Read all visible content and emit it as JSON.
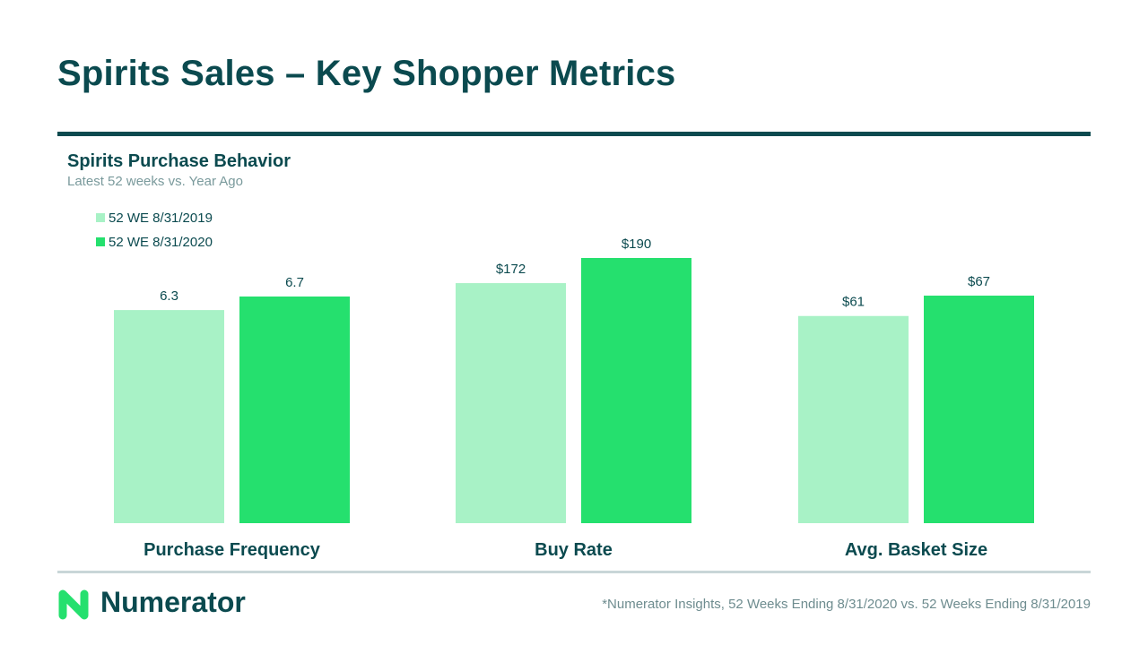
{
  "header": {
    "title": "Spirits Sales – Key Shopper Metrics"
  },
  "chart_data": {
    "type": "bar",
    "title": "Spirits Purchase Behavior",
    "subtitle": "Latest 52 weeks vs. Year Ago",
    "categories": [
      "Purchase Frequency",
      "Buy Rate",
      "Avg. Basket Size"
    ],
    "series": [
      {
        "name": "52 WE 8/31/2019",
        "color": "#a8f2c6",
        "values": [
          6.3,
          172,
          61
        ],
        "labels": [
          "6.3",
          "$172",
          "$61"
        ]
      },
      {
        "name": "52 WE 8/31/2020",
        "color": "#25e06e",
        "values": [
          6.7,
          190,
          67
        ],
        "labels": [
          "6.7",
          "$190",
          "$67"
        ]
      }
    ],
    "xlabel": "",
    "ylabel": "",
    "legend_position": "top-left",
    "grid": false
  },
  "footer": {
    "brand": "Numerator",
    "footnote": "*Numerator Insights, 52 Weeks Ending 8/31/2020 vs. 52 Weeks Ending 8/31/2019",
    "logo_color": "#25e06e"
  },
  "colors": {
    "primary": "#0b4a4f",
    "muted": "#7a9a9c",
    "divider": "#c9d6d8"
  }
}
